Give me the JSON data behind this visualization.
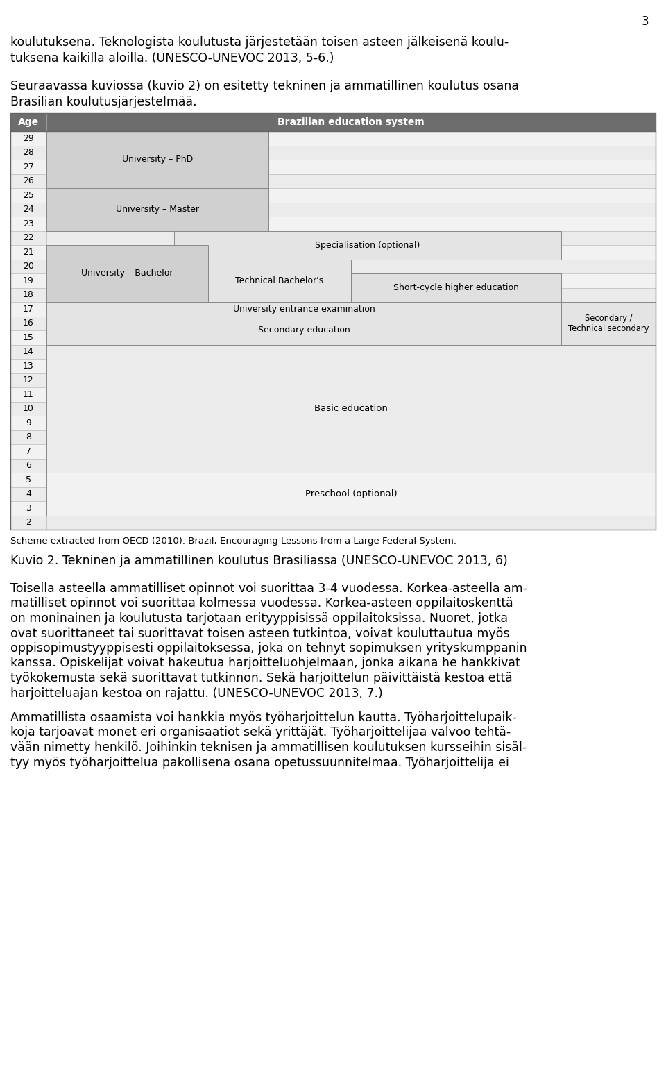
{
  "page_number": "3",
  "intro_text_line1": "koulutuksena. Teknologista koulutusta järjestetään toisen asteen jälkeisenä koulu-",
  "intro_text_line2": "tuksena kaikilla aloilla. (UNESCO-UNEVOC 2013, 5-6.)",
  "intro_text2_line1": "Seuraavassa kuviossa (kuvio 2) on esitetty tekninen ja ammatillinen koulutus osana",
  "intro_text2_line2": "Brasilian koulutusjärjestelmää.",
  "header_bg": "#6d6d6d",
  "header_text_color": "#ffffff",
  "header_age_label": "Age",
  "header_title": "Brazilian education system",
  "ages": [
    29,
    28,
    27,
    26,
    25,
    24,
    23,
    22,
    21,
    20,
    19,
    18,
    17,
    16,
    15,
    14,
    13,
    12,
    11,
    10,
    9,
    8,
    7,
    6,
    5,
    4,
    3,
    2
  ],
  "row_bg_light": "#eeeeee",
  "caption_source": "Scheme extracted from OECD (2010). Brazil; Encouraging Lessons from a Large Federal System.",
  "caption_title": "Kuvio 2. Tekninen ja ammatillinen koulutus Brasiliassa (UNESCO-UNEVOC 2013, 6)",
  "body_paragraphs": [
    "Toisella asteella ammatilliset opinnot voi suorittaa 3-4 vuodessa. Korkea-asteella am-\nmatilliset opinnot voi suorittaa kolmessa vuodessa. Korkea-asteen oppilaitoskenttä\non moninainen ja koulutusta tarjotaan erityyppisissä oppilaitoksissa. Nuoret, jotka\novat suorittaneet tai suorittavat toisen asteen tutkintoa, voivat kouluttautua myös\noppisopimustyyppisesti oppilaitoksessa, joka on tehnyt sopimuksen yrityskumppanin\nkanssa. Opiskelijat voivat hakeutua harjoitteluohjelmaan, jonka aikana he hankkivat\ntyökokemusta sekä suorittavat tutkinnon. Sekä harjoittelun päivittäistä kestoa että\nharjoitteluajan kestoa on rajattu. (UNESCO-UNEVOC 2013, 7.)",
    "Ammatillista osaamista voi hankkia myös työharjoittelun kautta. Työharjoittelupaik-\nkoja tarjoavat monet eri organisaatiot sekä yrittäjät. Työharjoittelijaa valvoo tehtä-\nvään nimetty henkilö. Joihinkin teknisen ja ammatillisen koulutuksen kursseihin sisäl-\ntyy myös työharjoittelua pakollisena osana opetussuunnitelmaa. Työharjoittelija ei"
  ]
}
